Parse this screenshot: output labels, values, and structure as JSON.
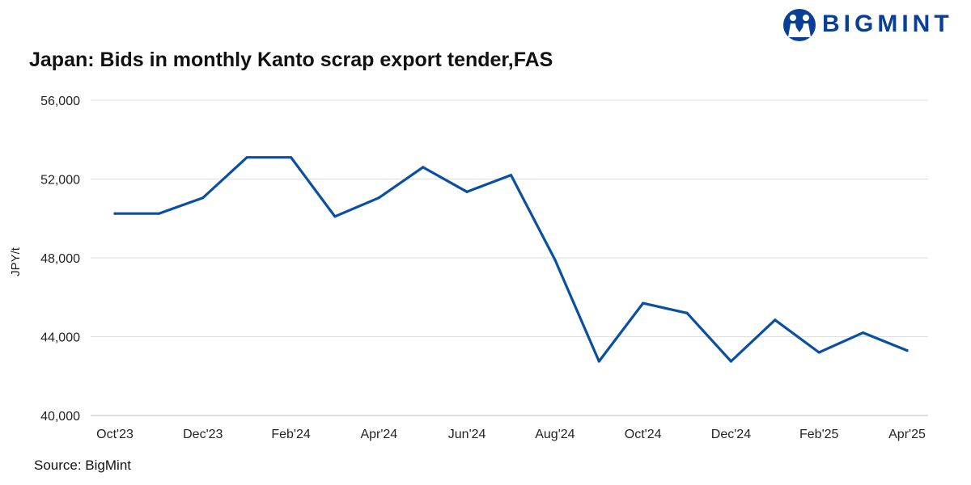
{
  "logo": {
    "text": "BIGMINT",
    "color": "#0a3f95"
  },
  "source": "Source: BigMint",
  "chart_data": {
    "type": "line",
    "title": "Japan: Bids in monthly Kanto scrap export tender,FAS",
    "xlabel": "",
    "ylabel": "JPY/t",
    "ylim": [
      40000,
      56000
    ],
    "yticks": [
      40000,
      44000,
      48000,
      52000,
      56000
    ],
    "ytick_labels": [
      "40,000",
      "44,000",
      "48,000",
      "52,000",
      "56,000"
    ],
    "x": [
      "Oct'23",
      "Nov'23",
      "Dec'23",
      "Jan'24",
      "Feb'24",
      "Mar'24",
      "Apr'24",
      "May'24",
      "Jun'24",
      "Jul'24",
      "Aug'24",
      "Sep'24",
      "Oct'24",
      "Nov'24",
      "Dec'24",
      "Jan'25",
      "Feb'25",
      "Mar'25",
      "Apr'25"
    ],
    "xtick_labels": [
      "Oct'23",
      "Dec'23",
      "Feb'24",
      "Apr'24",
      "Jun'24",
      "Aug'24",
      "Oct'24",
      "Dec'24",
      "Feb'25",
      "Apr'25"
    ],
    "series": [
      {
        "color": "#0a4fa0",
        "values": [
          50250,
          50250,
          51050,
          53100,
          53100,
          50100,
          51050,
          52600,
          51350,
          52200,
          47900,
          42750,
          45700,
          45200,
          42750,
          44850,
          43200,
          44200,
          43300
        ]
      }
    ],
    "grid": true,
    "legend": "none"
  }
}
